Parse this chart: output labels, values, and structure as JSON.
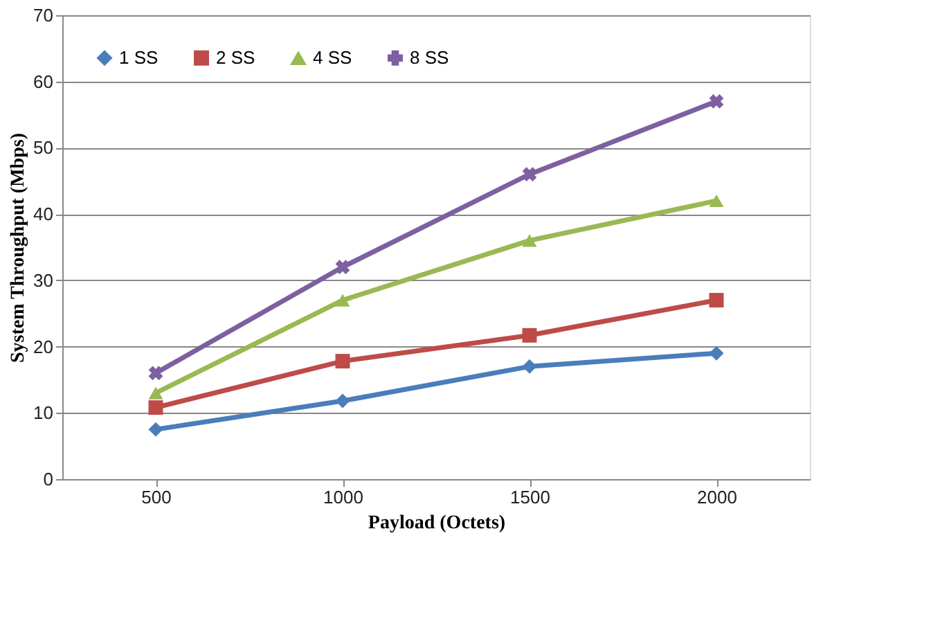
{
  "chart_data": {
    "type": "line",
    "xlabel": "Payload (Octets)",
    "ylabel": "System Throughput (Mbps)",
    "categories": [
      "500",
      "1000",
      "1500",
      "2000"
    ],
    "series": [
      {
        "name": "1 SS",
        "color": "#4a7ebb",
        "marker": "diamond",
        "values": [
          7.5,
          11.8,
          17,
          19
        ]
      },
      {
        "name": "2 SS",
        "color": "#be4b48",
        "marker": "square",
        "values": [
          10.8,
          17.8,
          21.7,
          27
        ]
      },
      {
        "name": "4 SS",
        "color": "#98b954",
        "marker": "triangle",
        "values": [
          13,
          27,
          36,
          42
        ]
      },
      {
        "name": "8 SS",
        "color": "#7d60a0",
        "marker": "cross",
        "values": [
          16,
          32,
          46,
          57
        ]
      }
    ],
    "ylim": [
      0,
      70
    ],
    "yticks": [
      0,
      10,
      20,
      30,
      40,
      50,
      60,
      70
    ],
    "grid": "y",
    "legend": "top left",
    "line_style": "solid"
  }
}
